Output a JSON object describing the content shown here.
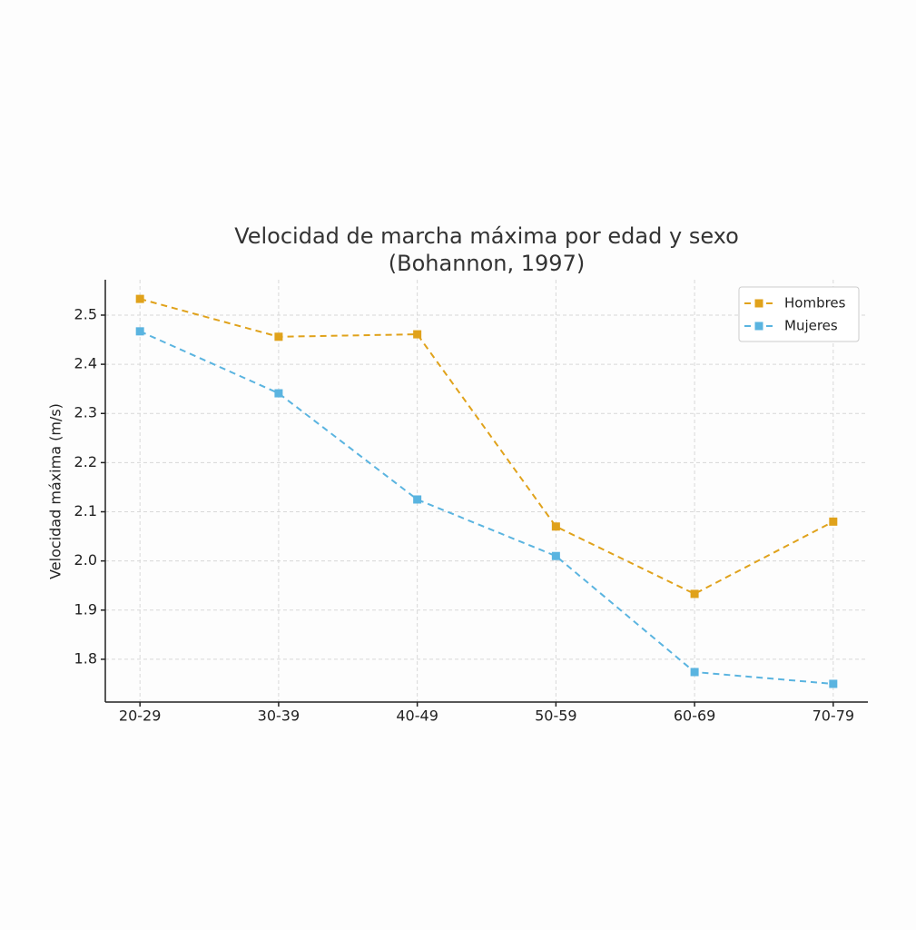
{
  "chart_data": {
    "type": "line",
    "title": "Velocidad de marcha máxima por edad y sexo",
    "subtitle": "(Bohannon, 1997)",
    "y_label": "Velocidad máxima (m/s)",
    "categories": [
      "20-29",
      "30-39",
      "40-49",
      "50-59",
      "60-69",
      "70-79"
    ],
    "series": [
      {
        "name": "Hombres",
        "color": "#e0a21b",
        "values": [
          2.533,
          2.456,
          2.461,
          2.07,
          1.933,
          2.08
        ]
      },
      {
        "name": "Mujeres",
        "color": "#5ab4e0",
        "values": [
          2.467,
          2.341,
          2.125,
          2.01,
          1.774,
          1.75
        ]
      }
    ],
    "ylim": [
      1.713,
      2.572
    ],
    "yticks": [
      1.8,
      1.9,
      {
        "value": 2,
        "label": "2.0"
      },
      2.1,
      2.2,
      2.3,
      2.4,
      2.5
    ],
    "grid": true,
    "legend": "upper right",
    "line_style": "dashed",
    "marker": "square"
  }
}
